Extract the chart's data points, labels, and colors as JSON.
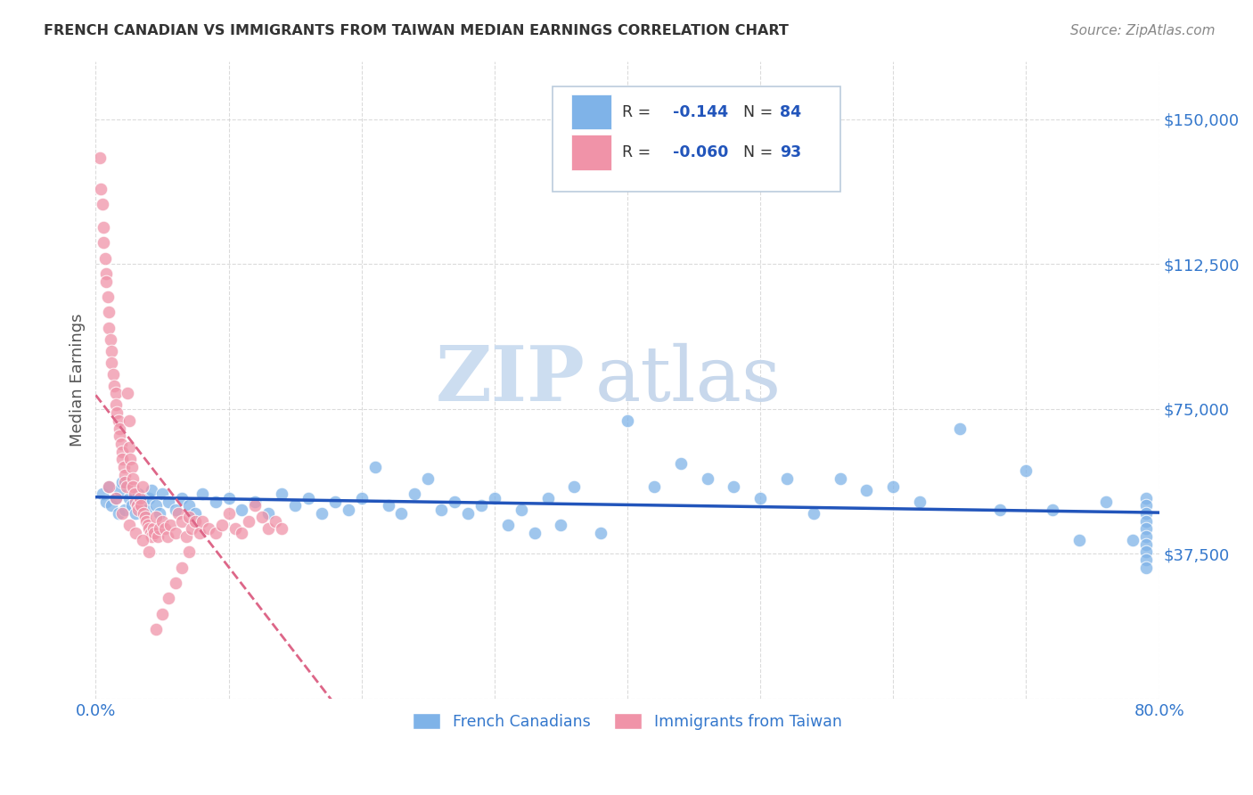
{
  "title": "FRENCH CANADIAN VS IMMIGRANTS FROM TAIWAN MEDIAN EARNINGS CORRELATION CHART",
  "source": "Source: ZipAtlas.com",
  "ylabel": "Median Earnings",
  "yticks": [
    0,
    37500,
    75000,
    112500,
    150000
  ],
  "ytick_labels": [
    "",
    "$37,500",
    "$75,000",
    "$112,500",
    "$150,000"
  ],
  "watermark_zip": "ZIP",
  "watermark_atlas": "atlas",
  "legend_labels_bottom": [
    "French Canadians",
    "Immigrants from Taiwan"
  ],
  "blue_scatter_color": "#7fb3e8",
  "pink_scatter_color": "#f093a8",
  "blue_line_color": "#2255bb",
  "pink_line_color": "#dd6688",
  "background_color": "#ffffff",
  "grid_color": "#cccccc",
  "title_color": "#333333",
  "axis_label_color": "#555555",
  "tick_label_color": "#3377cc",
  "watermark_color": "#ccddf0",
  "xlim": [
    0.0,
    0.8
  ],
  "ylim": [
    0,
    165000
  ],
  "blue_R": -0.144,
  "blue_N": 84,
  "pink_R": -0.06,
  "pink_N": 93,
  "blue_x": [
    0.005,
    0.008,
    0.01,
    0.012,
    0.015,
    0.017,
    0.018,
    0.02,
    0.022,
    0.025,
    0.027,
    0.03,
    0.032,
    0.035,
    0.038,
    0.04,
    0.042,
    0.045,
    0.048,
    0.05,
    0.055,
    0.06,
    0.065,
    0.07,
    0.075,
    0.08,
    0.09,
    0.1,
    0.11,
    0.12,
    0.13,
    0.14,
    0.15,
    0.16,
    0.17,
    0.18,
    0.19,
    0.2,
    0.21,
    0.22,
    0.23,
    0.24,
    0.25,
    0.26,
    0.27,
    0.28,
    0.29,
    0.3,
    0.31,
    0.32,
    0.33,
    0.34,
    0.35,
    0.36,
    0.38,
    0.4,
    0.42,
    0.44,
    0.46,
    0.48,
    0.5,
    0.52,
    0.54,
    0.56,
    0.58,
    0.6,
    0.62,
    0.65,
    0.68,
    0.7,
    0.72,
    0.74,
    0.76,
    0.78,
    0.79,
    0.79,
    0.79,
    0.79,
    0.79,
    0.79,
    0.79,
    0.79,
    0.79,
    0.79
  ],
  "blue_y": [
    53000,
    51000,
    55000,
    50000,
    52000,
    48000,
    54000,
    56000,
    49000,
    52000,
    50000,
    48000,
    53000,
    51000,
    49000,
    52000,
    54000,
    50000,
    48000,
    53000,
    51000,
    49000,
    52000,
    50000,
    48000,
    53000,
    51000,
    52000,
    49000,
    51000,
    48000,
    53000,
    50000,
    52000,
    48000,
    51000,
    49000,
    52000,
    60000,
    50000,
    48000,
    53000,
    57000,
    49000,
    51000,
    48000,
    50000,
    52000,
    45000,
    49000,
    43000,
    52000,
    45000,
    55000,
    43000,
    72000,
    55000,
    61000,
    57000,
    55000,
    52000,
    57000,
    48000,
    57000,
    54000,
    55000,
    51000,
    70000,
    49000,
    59000,
    49000,
    41000,
    51000,
    41000,
    52000,
    50000,
    48000,
    46000,
    44000,
    42000,
    40000,
    38000,
    36000,
    34000
  ],
  "pink_x": [
    0.003,
    0.004,
    0.005,
    0.006,
    0.006,
    0.007,
    0.008,
    0.008,
    0.009,
    0.01,
    0.01,
    0.011,
    0.012,
    0.012,
    0.013,
    0.014,
    0.015,
    0.015,
    0.016,
    0.017,
    0.018,
    0.018,
    0.019,
    0.02,
    0.02,
    0.021,
    0.022,
    0.022,
    0.023,
    0.024,
    0.025,
    0.025,
    0.026,
    0.027,
    0.028,
    0.028,
    0.029,
    0.03,
    0.031,
    0.032,
    0.033,
    0.034,
    0.035,
    0.036,
    0.037,
    0.038,
    0.039,
    0.04,
    0.041,
    0.042,
    0.043,
    0.044,
    0.045,
    0.047,
    0.048,
    0.05,
    0.052,
    0.054,
    0.056,
    0.06,
    0.062,
    0.065,
    0.068,
    0.07,
    0.072,
    0.075,
    0.078,
    0.08,
    0.085,
    0.09,
    0.095,
    0.1,
    0.105,
    0.11,
    0.115,
    0.12,
    0.125,
    0.13,
    0.135,
    0.14,
    0.01,
    0.015,
    0.02,
    0.025,
    0.03,
    0.035,
    0.04,
    0.045,
    0.05,
    0.055,
    0.06,
    0.065,
    0.07
  ],
  "pink_y": [
    140000,
    132000,
    128000,
    122000,
    118000,
    114000,
    110000,
    108000,
    104000,
    100000,
    96000,
    93000,
    90000,
    87000,
    84000,
    81000,
    79000,
    76000,
    74000,
    72000,
    70000,
    68000,
    66000,
    64000,
    62000,
    60000,
    58000,
    56000,
    55000,
    79000,
    72000,
    65000,
    62000,
    60000,
    57000,
    55000,
    53000,
    51000,
    50000,
    49000,
    52000,
    50000,
    55000,
    48000,
    47000,
    46000,
    45000,
    44000,
    43000,
    42000,
    44000,
    43000,
    47000,
    42000,
    44000,
    46000,
    44000,
    42000,
    45000,
    43000,
    48000,
    46000,
    42000,
    47000,
    44000,
    46000,
    43000,
    46000,
    44000,
    43000,
    45000,
    48000,
    44000,
    43000,
    46000,
    50000,
    47000,
    44000,
    46000,
    44000,
    55000,
    52000,
    48000,
    45000,
    43000,
    41000,
    38000,
    18000,
    22000,
    26000,
    30000,
    34000,
    38000
  ]
}
